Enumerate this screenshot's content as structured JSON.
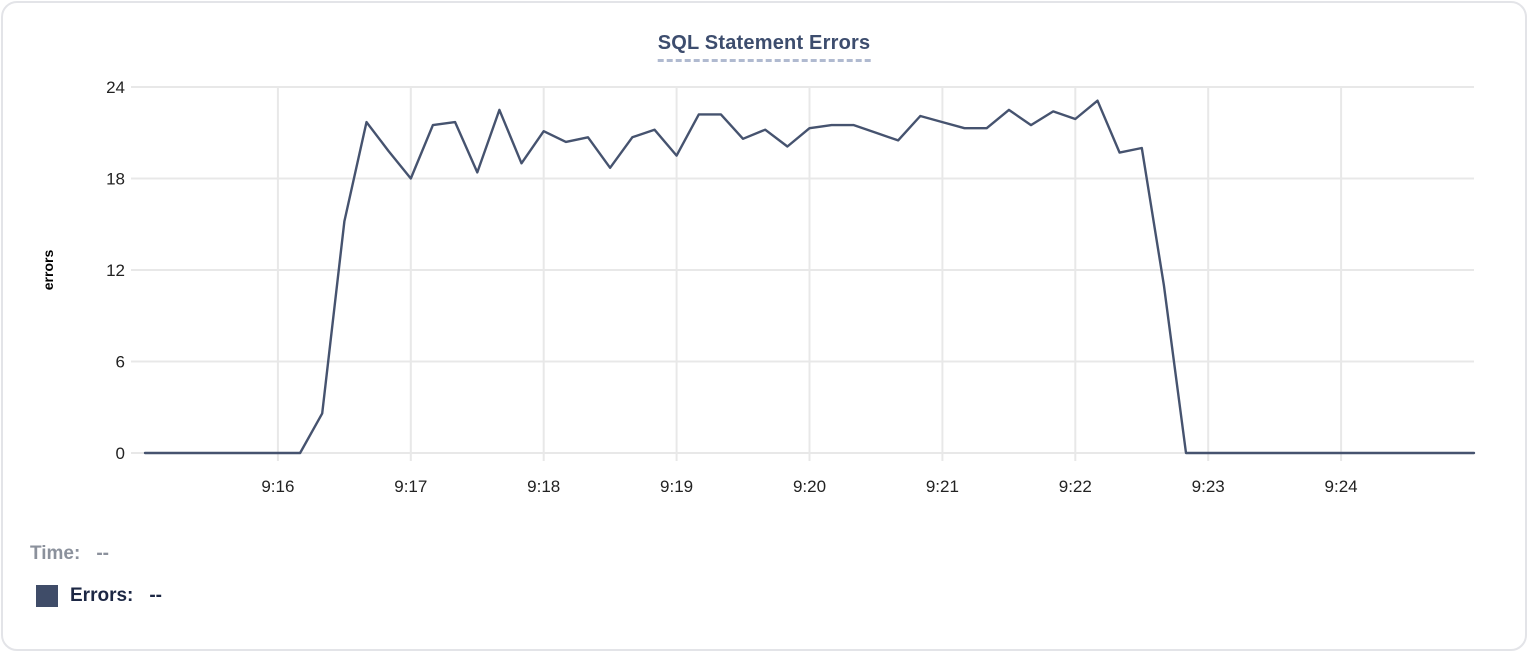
{
  "title": {
    "text": "SQL Statement Errors"
  },
  "legend": {
    "time_label": "Time:",
    "time_value": "--",
    "errors_label": "Errors:",
    "errors_value": "--"
  },
  "colors": {
    "line": "#46536f",
    "swatch": "#3f4c68",
    "title": "#3d4d6e",
    "title_underline": "#b0bad0",
    "gridline": "#e8e8e8",
    "tick_text": "#222222",
    "axis_label": "#000000",
    "card_border": "#e3e4e8"
  },
  "chart_data": {
    "type": "line",
    "title": "SQL Statement Errors",
    "xlabel": "",
    "ylabel": "errors",
    "ylim": [
      0,
      24
    ],
    "yticks": [
      0,
      6,
      12,
      18,
      24
    ],
    "xtick_labels": [
      "9:16",
      "9:17",
      "9:18",
      "9:19",
      "9:20",
      "9:21",
      "9:22",
      "9:23",
      "9:24"
    ],
    "grid": true,
    "legend_position": "bottom-left",
    "sample_interval_seconds": 10,
    "series": [
      {
        "name": "Errors",
        "color": "#46536f",
        "times": [
          "9:15:00",
          "9:15:10",
          "9:15:20",
          "9:15:30",
          "9:15:40",
          "9:15:50",
          "9:16:00",
          "9:16:10",
          "9:16:20",
          "9:16:30",
          "9:16:40",
          "9:16:50",
          "9:17:00",
          "9:17:10",
          "9:17:20",
          "9:17:30",
          "9:17:40",
          "9:17:50",
          "9:18:00",
          "9:18:10",
          "9:18:20",
          "9:18:30",
          "9:18:40",
          "9:18:50",
          "9:19:00",
          "9:19:10",
          "9:19:20",
          "9:19:30",
          "9:19:40",
          "9:19:50",
          "9:20:00",
          "9:20:10",
          "9:20:20",
          "9:20:30",
          "9:20:40",
          "9:20:50",
          "9:21:00",
          "9:21:10",
          "9:21:20",
          "9:21:30",
          "9:21:40",
          "9:21:50",
          "9:22:00",
          "9:22:10",
          "9:22:20",
          "9:22:30",
          "9:22:40",
          "9:22:50",
          "9:23:00",
          "9:23:10",
          "9:23:20",
          "9:23:30",
          "9:23:40",
          "9:23:50",
          "9:24:00",
          "9:24:10",
          "9:24:20",
          "9:24:30",
          "9:24:40",
          "9:24:50",
          "9:25:00"
        ],
        "values": [
          0,
          0,
          0,
          0,
          0,
          0,
          0,
          0,
          2.6,
          15.2,
          21.7,
          19.8,
          18,
          21.5,
          21.7,
          18.4,
          22.5,
          19,
          21.1,
          20.4,
          20.7,
          18.7,
          20.7,
          21.2,
          19.5,
          22.2,
          22.2,
          20.6,
          21.2,
          20.1,
          21.3,
          21.5,
          21.5,
          21,
          20.5,
          22.1,
          21.7,
          21.3,
          21.3,
          22.5,
          21.5,
          22.4,
          21.9,
          23.1,
          19.7,
          20,
          11,
          0,
          0,
          0,
          0,
          0,
          0,
          0,
          0,
          0,
          0,
          0,
          0,
          0,
          0
        ]
      }
    ]
  }
}
